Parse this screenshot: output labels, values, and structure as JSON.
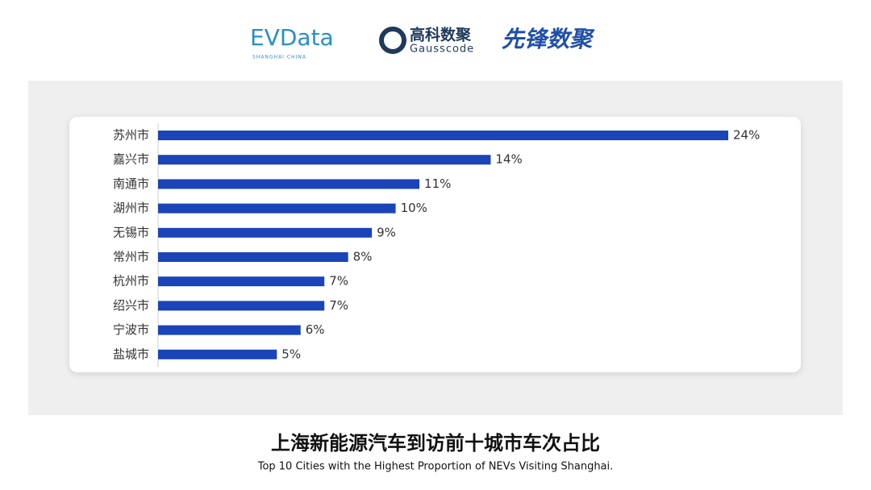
{
  "logos": {
    "evdata": "EVData",
    "evdata_sub": "SHANGHAI CHINA",
    "gauss": "高科数聚",
    "gauss_sub": "Gausscode",
    "xianfeng": "先锋数聚"
  },
  "chart_data": {
    "type": "bar",
    "orientation": "horizontal",
    "categories": [
      "苏州市",
      "嘉兴市",
      "南通市",
      "湖州市",
      "无锡市",
      "常州市",
      "杭州市",
      "绍兴市",
      "宁波市",
      "盐城市"
    ],
    "values": [
      24,
      14,
      11,
      10,
      9,
      8,
      7,
      7,
      6,
      5
    ],
    "value_labels": [
      "24%",
      "14%",
      "11%",
      "10%",
      "9%",
      "8%",
      "7%",
      "7%",
      "6%",
      "5%"
    ],
    "color": "#1a44b8",
    "title": "上海新能源汽车到访前十城市车次占比",
    "subtitle": "Top 10 Cities with the Highest Proportion of  NEVs Visiting Shanghai."
  }
}
